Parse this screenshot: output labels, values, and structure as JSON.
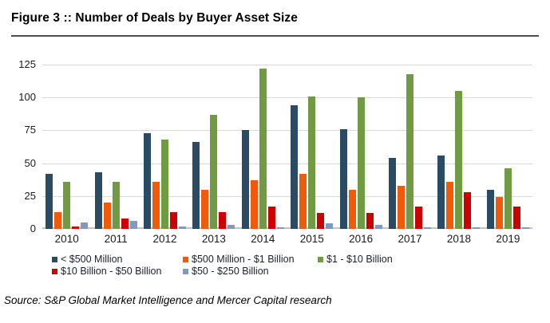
{
  "header": {
    "title": "Figure 3 :: Number of Deals by Buyer Asset Size"
  },
  "source_note": "Source: S&P Global Market Intelligence and Mercer Capital research",
  "colors": {
    "series_dark_blue": "#2B4A63",
    "series_orange": "#F15A09",
    "series_green": "#719B43",
    "series_red": "#CC0000",
    "series_light_blue": "#8099C3",
    "gridline": "#d9d9d9",
    "title_rule": "#4d4d4d"
  },
  "chart_data": {
    "type": "bar",
    "title": "Figure 3 :: Number of Deals by Buyer Asset Size",
    "xlabel": "",
    "ylabel": "",
    "ylim": [
      0,
      125
    ],
    "yticks": [
      0,
      25,
      50,
      75,
      100,
      125
    ],
    "grid": true,
    "legend_position": "bottom",
    "categories": [
      "2010",
      "2011",
      "2012",
      "2013",
      "2014",
      "2015",
      "2016",
      "2017",
      "2018",
      "2019"
    ],
    "series": [
      {
        "name": "< $500 Million",
        "color": "#2B4A63",
        "values": [
          42,
          43,
          73,
          66,
          75,
          94,
          76,
          54,
          56,
          30
        ]
      },
      {
        "name": "$500 Million - $1 Billion",
        "color": "#F15A09",
        "values": [
          13,
          20,
          36,
          30,
          37,
          42,
          30,
          33,
          36,
          24
        ]
      },
      {
        "name": "$1 - $10 Billion",
        "color": "#719B43",
        "values": [
          36,
          36,
          68,
          87,
          122,
          101,
          100,
          118,
          105,
          46
        ]
      },
      {
        "name": "$10 Billion - $50 Billion",
        "color": "#CC0000",
        "values": [
          2,
          8,
          13,
          13,
          17,
          12,
          12,
          17,
          28,
          17
        ]
      },
      {
        "name": "$50 - $250 Billion",
        "color": "#8099C3",
        "values": [
          5,
          6,
          2,
          3,
          1,
          4,
          3,
          1,
          1,
          1
        ]
      }
    ]
  }
}
